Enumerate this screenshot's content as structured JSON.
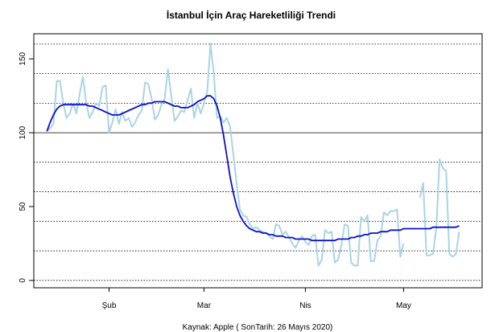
{
  "chart_data": {
    "type": "line",
    "title": "İstanbul İçin Araç Hareketliliği Trendi",
    "caption": "Kaynak: Apple ( SonTarih: 26 Mayıs 2020)",
    "xlabel": "",
    "ylabel": "",
    "x_range_days": [
      -23,
      114
    ],
    "ylim": [
      -5,
      167
    ],
    "x_tick_labels": [
      {
        "label": "Şub",
        "day": 0
      },
      {
        "label": "Mar",
        "day": 29
      },
      {
        "label": "Nis",
        "day": 60
      },
      {
        "label": "May",
        "day": 90
      }
    ],
    "y_ticks": [
      0,
      50,
      100,
      150
    ],
    "reference_lines": {
      "solid": [
        100
      ],
      "dotted": [
        0,
        20,
        40,
        60,
        80,
        120,
        140,
        160
      ]
    },
    "series": [
      {
        "color": "#aad4e4",
        "start_day": -19,
        "values": [
          101,
          103,
          106,
          135,
          135,
          120,
          110,
          113,
          120,
          113,
          126,
          138,
          120,
          110,
          114,
          120,
          118,
          131,
          132,
          100,
          107,
          116,
          106,
          114,
          108,
          110,
          104,
          107,
          112,
          115,
          134,
          133,
          123,
          109,
          112,
          119,
          123,
          143,
          125,
          108,
          111,
          115,
          114,
          122,
          130,
          110,
          120,
          113,
          120,
          128,
          160,
          140,
          110,
          111,
          107,
          110,
          104,
          85,
          65,
          48,
          44,
          43,
          38,
          35,
          36,
          34,
          33,
          32,
          30,
          28,
          38,
          37,
          31,
          33,
          29,
          25,
          22,
          27,
          30,
          26,
          24,
          30,
          31,
          10,
          14,
          34,
          32,
          33,
          12,
          14,
          24,
          38,
          37,
          12,
          10,
          10,
          43,
          40,
          44,
          13,
          13,
          27,
          30,
          46,
          44,
          47,
          47,
          48,
          16,
          25,
          null,
          null,
          null,
          null,
          56,
          66,
          17,
          17,
          18,
          35,
          82,
          76,
          74,
          18,
          16,
          18,
          33
        ]
      },
      {
        "color": "#0a10c8",
        "start_day": -19,
        "values": [
          101,
          107,
          112,
          116,
          118,
          119,
          119,
          119,
          119,
          119,
          119,
          119,
          119,
          118,
          118,
          117,
          116,
          115,
          114,
          113,
          112,
          112,
          112,
          113,
          114,
          115,
          116,
          117,
          118,
          119,
          119,
          120,
          120,
          121,
          121,
          121,
          121,
          120,
          119,
          118,
          118,
          117,
          117,
          117,
          118,
          119,
          121,
          122,
          123,
          125,
          125,
          123,
          118,
          110,
          98,
          84,
          70,
          59,
          50,
          44,
          40,
          37,
          35,
          34,
          33,
          33,
          32,
          32,
          31,
          31,
          30,
          30,
          30,
          29,
          29,
          29,
          28,
          28,
          28,
          28,
          28,
          27,
          27,
          27,
          27,
          27,
          27,
          27,
          27,
          28,
          28,
          28,
          28,
          29,
          29,
          30,
          30,
          31,
          31,
          32,
          32,
          32,
          33,
          33,
          33,
          34,
          34,
          34,
          34,
          35,
          35,
          35,
          35,
          35,
          35,
          35,
          35,
          35,
          36,
          36,
          36,
          36,
          36,
          36,
          36,
          36,
          37
        ]
      }
    ]
  }
}
